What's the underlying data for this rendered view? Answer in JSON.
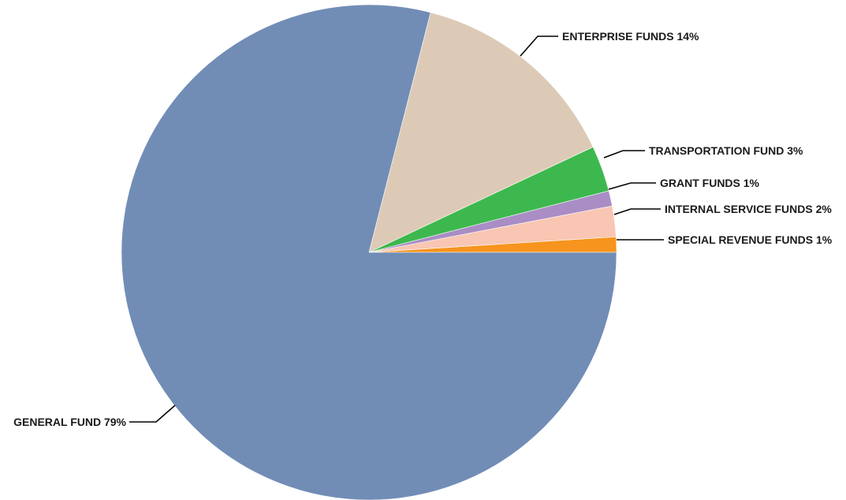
{
  "chart_data": {
    "type": "pie",
    "title": "",
    "start_angle_deg": 0,
    "direction": "counterclockwise",
    "slices": [
      {
        "name": "SPECIAL REVENUE FUNDS",
        "value": 1,
        "label": "SPECIAL REVENUE FUNDS 1%",
        "color": "#F7941D"
      },
      {
        "name": "INTERNAL SERVICE FUNDS",
        "value": 2,
        "label": "INTERNAL SERVICE FUNDS 2%",
        "color": "#F8C6B2"
      },
      {
        "name": "GRANT FUNDS",
        "value": 1,
        "label": "GRANT FUNDS 1%",
        "color": "#A98DC4"
      },
      {
        "name": "TRANSPORTATION FUND",
        "value": 3,
        "label": "TRANSPORTATION FUND 3%",
        "color": "#3DB84E"
      },
      {
        "name": "ENTERPRISE FUNDS",
        "value": 14,
        "label": "ENTERPRISE FUNDS 14%",
        "color": "#DDCAB6"
      },
      {
        "name": "GENERAL FUND",
        "value": 79,
        "label": "GENERAL FUND 79%",
        "color": "#718DB6"
      }
    ],
    "legend": "none"
  }
}
